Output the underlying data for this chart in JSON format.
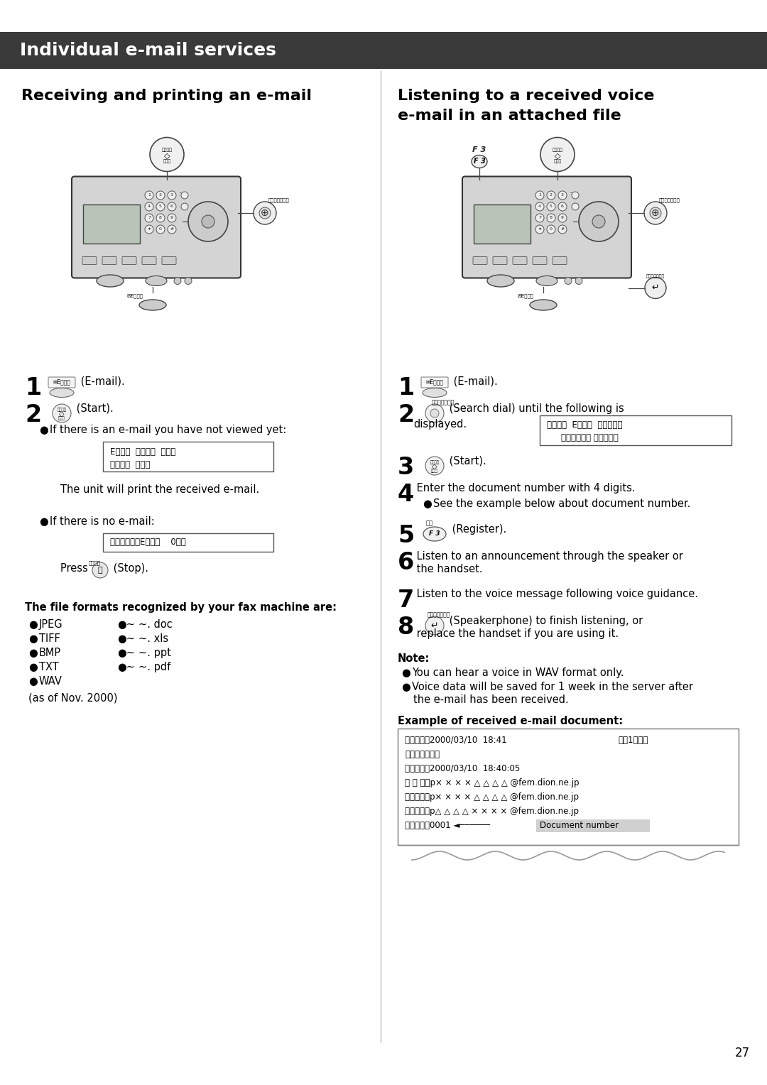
{
  "header_bg": "#3a3a3a",
  "header_text": "Individual e-mail services",
  "header_text_color": "#ffffff",
  "header_fontsize": 18,
  "page_bg": "#ffffff",
  "left_col_title": "Receiving and printing an e-mail",
  "right_col_title_line1": "Listening to a received voice",
  "right_col_title_line2": "e-mail in an attached file",
  "col_title_fontsize": 16,
  "left_bullet1": "If there is an e-mail you have not viewed yet:",
  "left_lcd1_line1": "Eメール  ツウシン  チュウ",
  "left_lcd1_line2": "ツウシン  チュウ",
  "left_print_msg": "The unit will print the received e-mail.",
  "left_bullet2": "If there is no e-mail:",
  "left_lcd2": "ミシ゛ュシンEメール    0ケン",
  "left_file_title": "The file formats recognized by your fax machine are:",
  "left_file_col1": [
    "JPEG",
    "TIFF",
    "BMP",
    "TXT",
    "WAV"
  ],
  "left_file_col2": [
    "~. doc",
    "~. xls",
    "~. ppt",
    "~. pdf"
  ],
  "left_as_of": "(as of Nov. 2000)",
  "right_step4_bullet": "See the example below about document number.",
  "right_lcd_line1": "オンセイ  Eメール  ジ゛ュシン",
  "right_lcd_line2": "［クルクル， スタート］",
  "right_note_title": "Note:",
  "right_note1": "You can hear a voice in WAV format only.",
  "right_note2a": "Voice data will be saved for 1 week in the server after",
  "right_note2b": "the e-mail has been received.",
  "right_example_title": "Example of received e-mail document:",
  "right_example_line1": "受信日時：2000/03/10  18:41",
  "right_example_line1b": "合訜1ページ",
  "right_example_line2": "タイトル：連絡",
  "right_example_line3": "送信日時：2000/03/10  18:40:05",
  "right_example_line4": "差 出 人：p× × × × △ △ △ △ @fem.dion.ne.jp",
  "right_example_line5": "宛　　先：p× × × × △ △ △ △ @fem.dion.ne.jp",
  "right_example_line6": "同報宛先：p△ △ △ △ × × × × @fem.dion.ne.jp",
  "right_example_line7a": "文書番号：0001 ◄──────",
  "right_example_line7b": "Document number",
  "page_number": "27",
  "body_fontsize": 10.5,
  "small_fontsize": 8.5,
  "tiny_fontsize": 6
}
